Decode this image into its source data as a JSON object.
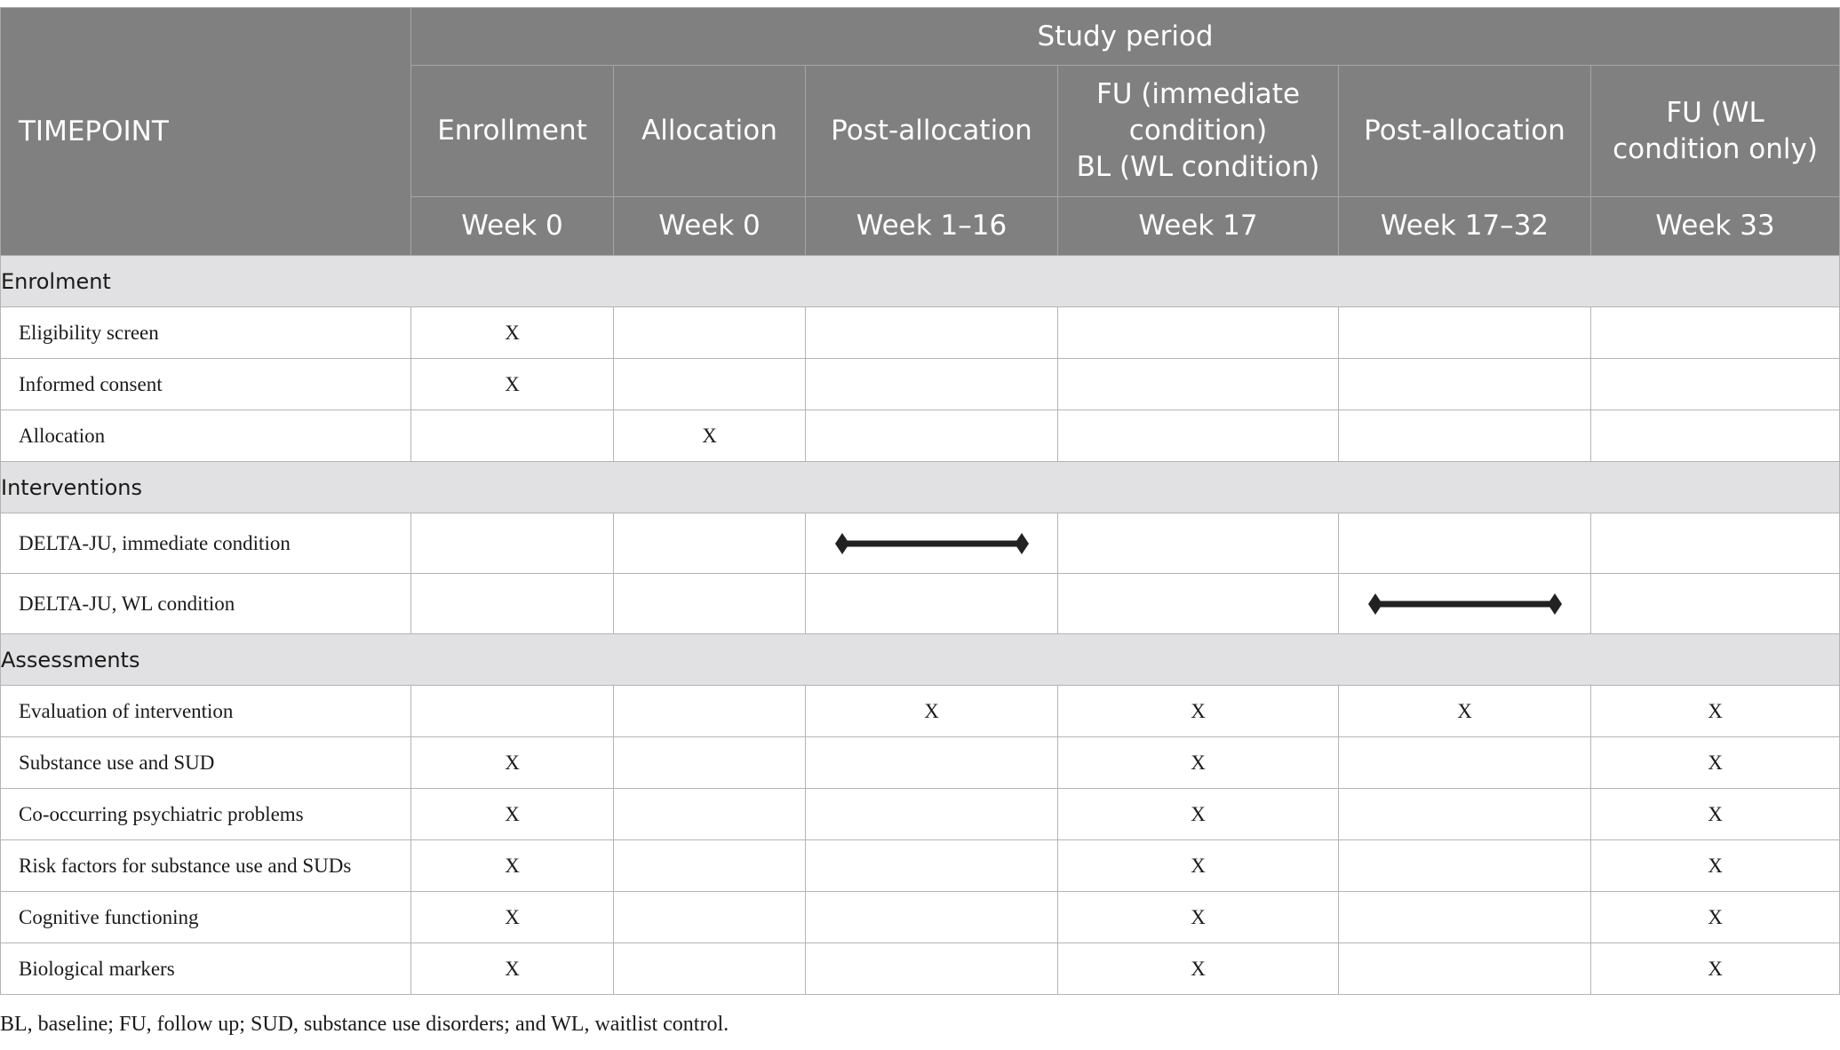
{
  "header": {
    "timepoint": "TIMEPOINT",
    "study_period": "Study period",
    "columns": [
      {
        "phase": "Enrollment",
        "week": "Week 0"
      },
      {
        "phase": "Allocation",
        "week": "Week 0"
      },
      {
        "phase": "Post-allocation",
        "week": "Week 1–16"
      },
      {
        "phase_lines": [
          "FU (immediate",
          "condition)",
          "BL (WL condition)"
        ],
        "week": "Week 17"
      },
      {
        "phase": "Post-allocation",
        "week": "Week 17–32"
      },
      {
        "phase_lines": [
          "FU (WL",
          "condition only)"
        ],
        "week": "Week 33"
      }
    ]
  },
  "sections": {
    "enrolment": "Enrolment",
    "interventions": "Interventions",
    "assessments": "Assessments"
  },
  "rows": {
    "eligibility": {
      "label": "Eligibility screen",
      "marks": [
        "X",
        "",
        "",
        "",
        "",
        ""
      ]
    },
    "consent": {
      "label": "Informed consent",
      "marks": [
        "X",
        "",
        "",
        "",
        "",
        ""
      ]
    },
    "allocation": {
      "label": "Allocation",
      "marks": [
        "",
        "X",
        "",
        "",
        "",
        ""
      ]
    },
    "delta_immediate": {
      "label": "DELTA-JU, immediate condition",
      "bar_column": "Week 1–16"
    },
    "delta_wl": {
      "label": "DELTA-JU, WL condition",
      "bar_column": "Week 17–32"
    },
    "evaluation": {
      "label": "Evaluation of intervention",
      "marks": [
        "",
        "",
        "X",
        "X",
        "X",
        "X"
      ]
    },
    "substance": {
      "label": "Substance use and SUD",
      "marks": [
        "X",
        "",
        "",
        "X",
        "",
        "X"
      ]
    },
    "psychiatric": {
      "label": "Co-occurring psychiatric problems",
      "marks": [
        "X",
        "",
        "",
        "X",
        "",
        "X"
      ]
    },
    "risk": {
      "label": "Risk factors for substance use and SUDs",
      "marks": [
        "X",
        "",
        "",
        "X",
        "",
        "X"
      ]
    },
    "cognitive": {
      "label": "Cognitive functioning",
      "marks": [
        "X",
        "",
        "",
        "X",
        "",
        "X"
      ]
    },
    "biological": {
      "label": "Biological markers",
      "marks": [
        "X",
        "",
        "",
        "X",
        "",
        "X"
      ]
    }
  },
  "footnote": "BL, baseline; FU, follow up; SUD, substance use disorders; and WL, waitlist control."
}
